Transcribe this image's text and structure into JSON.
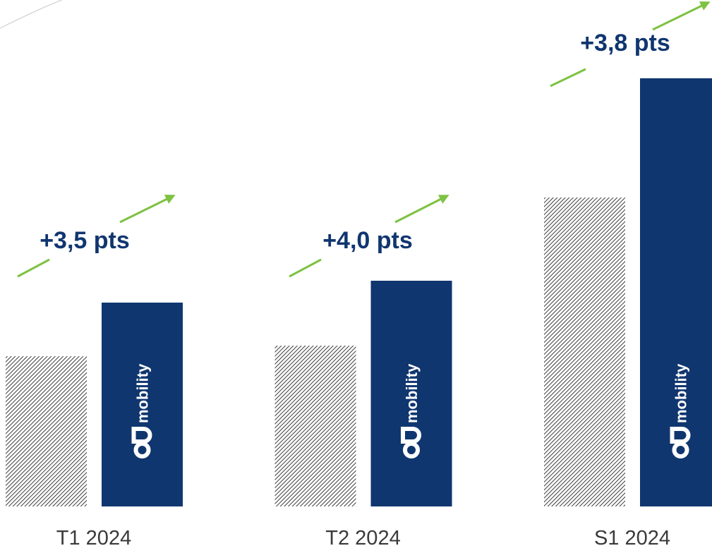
{
  "chart_data": {
    "type": "bar",
    "categories": [
      "T1 2024",
      "T2 2024",
      "S1 2024"
    ],
    "series": [
      {
        "color": "#3c3c3c",
        "values": [
          213,
          228,
          438
        ]
      },
      {
        "color": "#10366f",
        "values": [
          289,
          320,
          607
        ]
      }
    ],
    "ylim": [
      0,
      718
    ],
    "bar_logo": "mobility",
    "annotations": [
      "+3,5 pts",
      "+4,0 pts",
      "+3,8 pts"
    ],
    "annotation_color": "#7dc242"
  }
}
